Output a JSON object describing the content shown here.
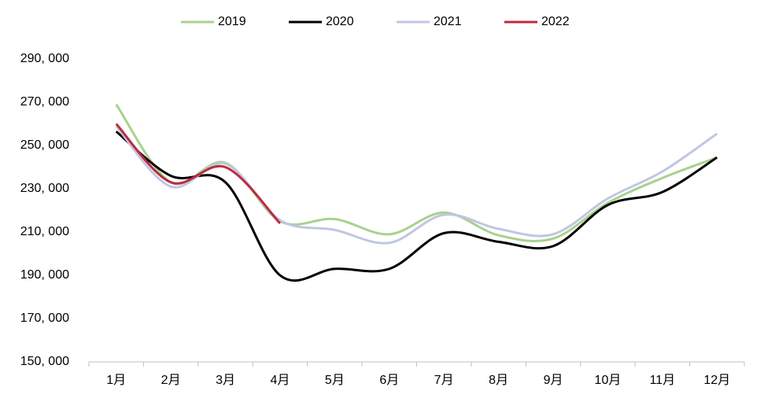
{
  "chart_data": {
    "type": "line",
    "categories": [
      "1月",
      "2月",
      "3月",
      "4月",
      "5月",
      "6月",
      "7月",
      "8月",
      "9月",
      "10月",
      "11月",
      "12月"
    ],
    "series": [
      {
        "name": "2019",
        "color": "#a9d18e",
        "values": [
          269000,
          233000,
          242000,
          215000,
          216000,
          209000,
          219000,
          208500,
          207000,
          223500,
          235000,
          244500
        ]
      },
      {
        "name": "2020",
        "color": "#000000",
        "values": [
          256500,
          236000,
          233000,
          190000,
          193000,
          193000,
          209500,
          205500,
          203500,
          222500,
          228500,
          244500
        ]
      },
      {
        "name": "2021",
        "color": "#c0c6e2",
        "values": [
          259000,
          231000,
          241500,
          215500,
          211000,
          205000,
          218000,
          211500,
          209000,
          225500,
          238000,
          255500
        ]
      },
      {
        "name": "2022",
        "color": "#be2a3e",
        "values": [
          260000,
          233000,
          240000,
          214000,
          null,
          null,
          null,
          null,
          null,
          null,
          null,
          null
        ]
      }
    ],
    "ylim": [
      150000,
      290000
    ],
    "yticks": [
      {
        "value": 150000,
        "label": "150, 000"
      },
      {
        "value": 170000,
        "label": "170, 000"
      },
      {
        "value": 190000,
        "label": "190, 000"
      },
      {
        "value": 210000,
        "label": "210, 000"
      },
      {
        "value": 230000,
        "label": "230, 000"
      },
      {
        "value": 250000,
        "label": "250, 000"
      },
      {
        "value": 270000,
        "label": "270, 000"
      },
      {
        "value": 290000,
        "label": "290, 000"
      }
    ],
    "grid": false,
    "legend": "top"
  }
}
